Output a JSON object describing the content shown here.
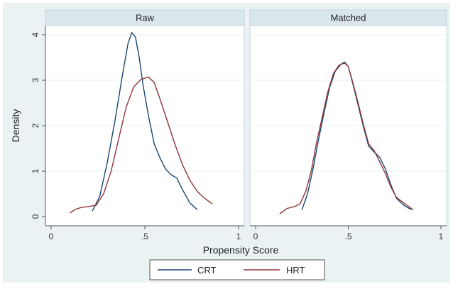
{
  "chart_data": {
    "type": "line",
    "ylabel": "Density",
    "xlabel": "Propensity Score",
    "xlim": [
      0,
      1
    ],
    "ylim": [
      0,
      4.2
    ],
    "x_ticks": [
      {
        "value": 0,
        "label": "0"
      },
      {
        "value": 0.5,
        "label": ".5"
      },
      {
        "value": 1,
        "label": "1"
      }
    ],
    "y_ticks": [
      {
        "value": 0,
        "label": "0"
      },
      {
        "value": 1,
        "label": "1"
      },
      {
        "value": 2,
        "label": "2"
      },
      {
        "value": 3,
        "label": "3"
      },
      {
        "value": 4,
        "label": "4"
      }
    ],
    "legend": {
      "placement": "bottom",
      "entries": [
        {
          "name": "CRT",
          "color": "#1a476f"
        },
        {
          "name": "HRT",
          "color": "#90353b"
        }
      ]
    },
    "panels": [
      {
        "title": "Raw",
        "series": [
          {
            "name": "CRT",
            "color": "#1a476f",
            "points": [
              [
                0.22,
                0.12
              ],
              [
                0.26,
                0.45
              ],
              [
                0.3,
                1.2
              ],
              [
                0.34,
                2.1
              ],
              [
                0.38,
                3.1
              ],
              [
                0.41,
                3.8
              ],
              [
                0.43,
                4.05
              ],
              [
                0.45,
                3.95
              ],
              [
                0.47,
                3.5
              ],
              [
                0.49,
                2.9
              ],
              [
                0.52,
                2.2
              ],
              [
                0.55,
                1.6
              ],
              [
                0.58,
                1.3
              ],
              [
                0.61,
                1.05
              ],
              [
                0.64,
                0.92
              ],
              [
                0.67,
                0.85
              ],
              [
                0.7,
                0.6
              ],
              [
                0.74,
                0.3
              ],
              [
                0.78,
                0.15
              ]
            ]
          },
          {
            "name": "HRT",
            "color": "#90353b",
            "points": [
              [
                0.1,
                0.08
              ],
              [
                0.13,
                0.16
              ],
              [
                0.16,
                0.2
              ],
              [
                0.2,
                0.22
              ],
              [
                0.24,
                0.25
              ],
              [
                0.28,
                0.5
              ],
              [
                0.32,
                1.0
              ],
              [
                0.36,
                1.7
              ],
              [
                0.4,
                2.4
              ],
              [
                0.44,
                2.85
              ],
              [
                0.48,
                3.02
              ],
              [
                0.52,
                3.07
              ],
              [
                0.55,
                2.95
              ],
              [
                0.58,
                2.6
              ],
              [
                0.62,
                2.1
              ],
              [
                0.66,
                1.6
              ],
              [
                0.7,
                1.15
              ],
              [
                0.74,
                0.8
              ],
              [
                0.78,
                0.55
              ],
              [
                0.82,
                0.4
              ],
              [
                0.86,
                0.28
              ]
            ]
          }
        ]
      },
      {
        "title": "Matched",
        "series": [
          {
            "name": "CRT",
            "color": "#1a476f",
            "points": [
              [
                0.25,
                0.15
              ],
              [
                0.28,
                0.5
              ],
              [
                0.31,
                1.05
              ],
              [
                0.34,
                1.7
              ],
              [
                0.37,
                2.3
              ],
              [
                0.4,
                2.85
              ],
              [
                0.43,
                3.2
              ],
              [
                0.46,
                3.35
              ],
              [
                0.48,
                3.4
              ],
              [
                0.5,
                3.3
              ],
              [
                0.52,
                3.0
              ],
              [
                0.55,
                2.5
              ],
              [
                0.58,
                2.0
              ],
              [
                0.61,
                1.55
              ],
              [
                0.64,
                1.42
              ],
              [
                0.67,
                1.3
              ],
              [
                0.7,
                1.05
              ],
              [
                0.73,
                0.7
              ],
              [
                0.76,
                0.4
              ],
              [
                0.8,
                0.25
              ],
              [
                0.84,
                0.15
              ]
            ]
          },
          {
            "name": "HRT",
            "color": "#90353b",
            "points": [
              [
                0.13,
                0.06
              ],
              [
                0.17,
                0.18
              ],
              [
                0.21,
                0.22
              ],
              [
                0.24,
                0.28
              ],
              [
                0.27,
                0.55
              ],
              [
                0.3,
                1.0
              ],
              [
                0.33,
                1.65
              ],
              [
                0.36,
                2.2
              ],
              [
                0.39,
                2.75
              ],
              [
                0.42,
                3.15
              ],
              [
                0.45,
                3.33
              ],
              [
                0.48,
                3.38
              ],
              [
                0.5,
                3.3
              ],
              [
                0.52,
                3.02
              ],
              [
                0.55,
                2.55
              ],
              [
                0.58,
                2.05
              ],
              [
                0.61,
                1.6
              ],
              [
                0.64,
                1.45
              ],
              [
                0.67,
                1.2
              ],
              [
                0.7,
                0.95
              ],
              [
                0.73,
                0.65
              ],
              [
                0.76,
                0.42
              ],
              [
                0.8,
                0.3
              ],
              [
                0.85,
                0.15
              ]
            ]
          }
        ]
      }
    ]
  }
}
